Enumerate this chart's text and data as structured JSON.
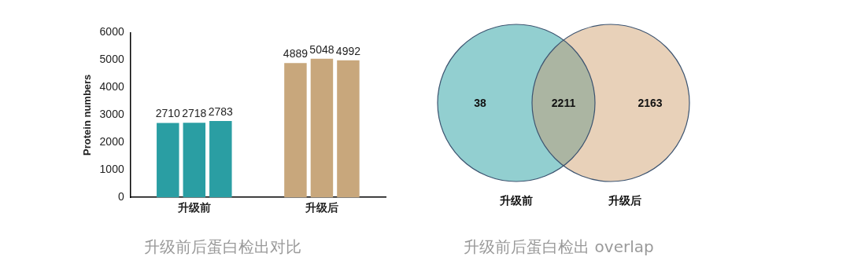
{
  "chart_data": [
    {
      "type": "bar",
      "ylabel": "Protein numbers",
      "categories": [
        "升级前",
        "升级后"
      ],
      "series": [
        {
          "colors": [
            "#2a9ea3",
            "#c8a77c"
          ],
          "values": [
            2710,
            4889
          ]
        },
        {
          "colors": [
            "#2a9ea3",
            "#c8a77c"
          ],
          "values": [
            2718,
            5048
          ]
        },
        {
          "colors": [
            "#2a9ea3",
            "#c8a77c"
          ],
          "values": [
            2783,
            4992
          ]
        }
      ],
      "ylim": [
        0,
        6000
      ],
      "yticks": [
        0,
        1000,
        2000,
        3000,
        4000,
        5000,
        6000
      ],
      "grid": false,
      "legend": false,
      "data_labels": true,
      "annotations": [
        "升级前后蛋白检出对比"
      ]
    },
    {
      "type": "other",
      "categories": [
        "升级前",
        null,
        "升级后"
      ],
      "values": [
        38,
        2211,
        2163
      ],
      "data_labels": true,
      "colors": [
        "#92cfd0",
        "#abb5a2",
        "#e8d1b9"
      ],
      "annotations": [
        "升级前后蛋白检出 overlap"
      ]
    }
  ]
}
